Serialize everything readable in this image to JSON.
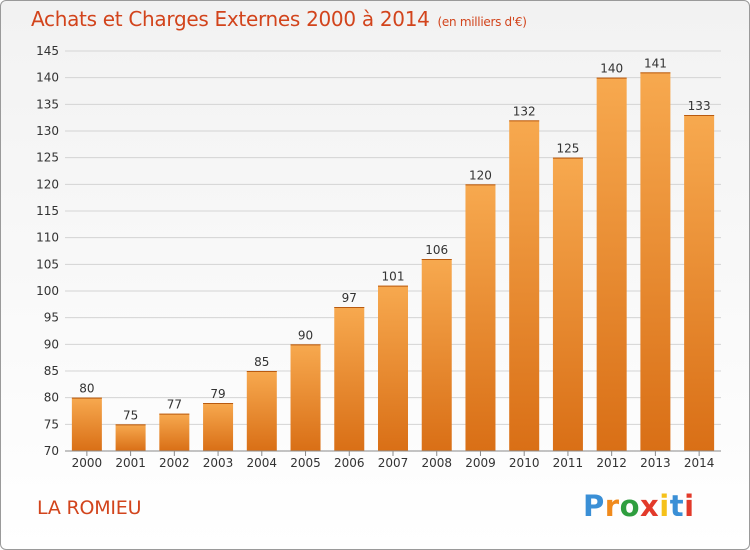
{
  "chart_data": {
    "type": "bar",
    "title": "Achats et Charges Externes 2000 à 2014",
    "subtitle": "(en milliers d'€)",
    "categories": [
      "2000",
      "2001",
      "2002",
      "2003",
      "2004",
      "2005",
      "2006",
      "2007",
      "2008",
      "2009",
      "2010",
      "2011",
      "2012",
      "2013",
      "2014"
    ],
    "values": [
      80,
      75,
      77,
      79,
      85,
      90,
      97,
      101,
      106,
      120,
      132,
      125,
      140,
      141,
      133
    ],
    "ylim": [
      70,
      145
    ],
    "yticks": [
      70,
      75,
      80,
      85,
      90,
      95,
      100,
      105,
      110,
      115,
      120,
      125,
      130,
      135,
      140,
      145
    ],
    "grid": true,
    "bar_color_light": "#f7a94f",
    "bar_color_dark": "#d96f16",
    "accent_color": "#d2441c"
  },
  "commune": "LA ROMIEU",
  "logo": {
    "letters": [
      "P",
      "r",
      "o",
      "x",
      "i",
      "t",
      "i"
    ],
    "colors": [
      "#3a8fd6",
      "#f08a1c",
      "#2e9e3e",
      "#e23a2a",
      "#f5c11a",
      "#3a8fd6",
      "#e23a2a"
    ]
  }
}
